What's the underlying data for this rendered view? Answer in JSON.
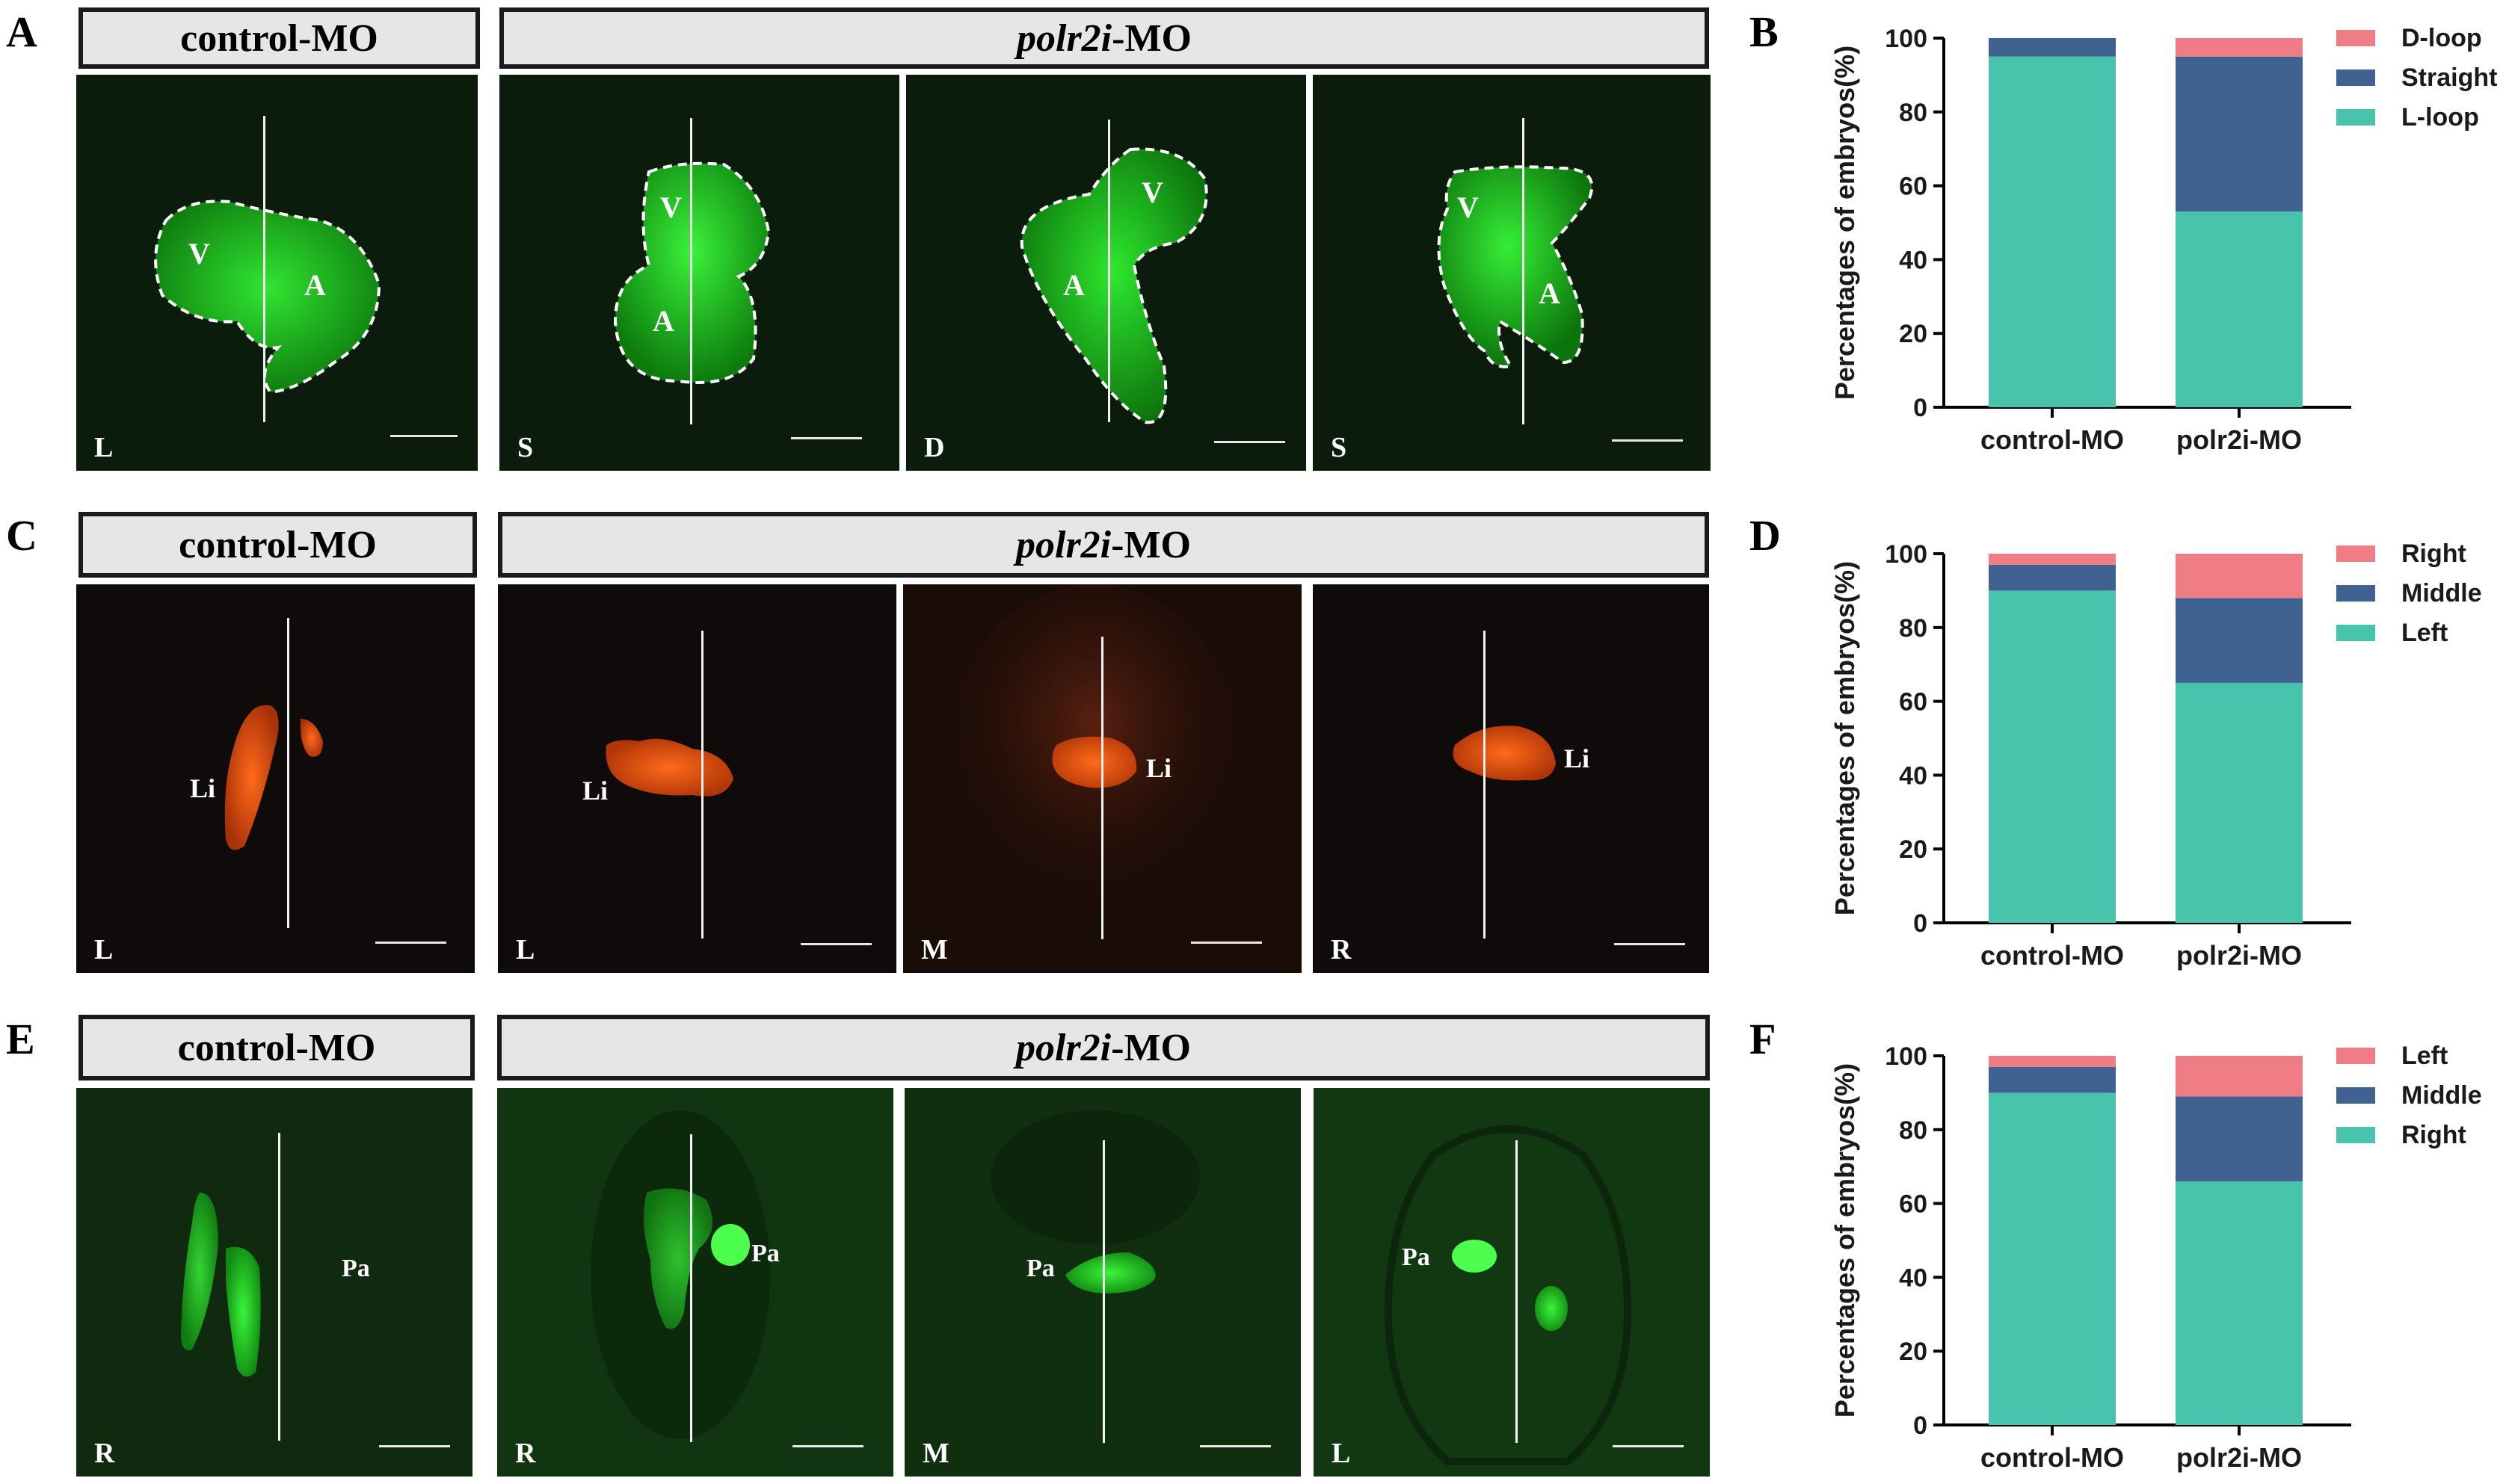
{
  "rows": [
    {
      "id": "heart",
      "panel_letter": "A",
      "chart_letter": "B",
      "header_control": "control-MO",
      "header_treat_italic": "polr2i",
      "header_treat_suffix": "-MO",
      "panels": [
        {
          "corner": "L",
          "organ_labels": [
            "V",
            "A"
          ]
        },
        {
          "corner": "S",
          "organ_labels": [
            "V",
            "A"
          ]
        },
        {
          "corner": "D",
          "organ_labels": [
            "V",
            "A"
          ]
        },
        {
          "corner": "S",
          "organ_labels": [
            "V",
            "A"
          ]
        }
      ]
    },
    {
      "id": "liver",
      "panel_letter": "C",
      "chart_letter": "D",
      "header_control": "control-MO",
      "header_treat_italic": "polr2i",
      "header_treat_suffix": "-MO",
      "panels": [
        {
          "corner": "L",
          "organ_labels": [
            "Li"
          ]
        },
        {
          "corner": "L",
          "organ_labels": [
            "Li"
          ]
        },
        {
          "corner": "M",
          "organ_labels": [
            "Li"
          ]
        },
        {
          "corner": "R",
          "organ_labels": [
            "Li"
          ]
        }
      ]
    },
    {
      "id": "pancreas",
      "panel_letter": "E",
      "chart_letter": "F",
      "header_control": "control-MO",
      "header_treat_italic": "polr2i",
      "header_treat_suffix": "-MO",
      "panels": [
        {
          "corner": "R",
          "organ_labels": [
            "Pa"
          ]
        },
        {
          "corner": "R",
          "organ_labels": [
            "Pa"
          ]
        },
        {
          "corner": "M",
          "organ_labels": [
            "Pa"
          ]
        },
        {
          "corner": "L",
          "organ_labels": [
            "Pa"
          ]
        }
      ]
    }
  ],
  "colors": {
    "series_top": "#f07c86",
    "series_mid": "#3f6290",
    "series_bottom": "#48c4ad",
    "heart_fluor": "#2ee82e",
    "liver_fluor": "#ff5a10",
    "pancreas_fluor": "#35f035"
  },
  "chart_data": [
    {
      "type": "bar",
      "stacked": true,
      "categories": [
        "control-MO",
        "polr2i-MO"
      ],
      "ylabel": "Percentages of embryos(%)",
      "ylim": [
        0,
        100
      ],
      "yticks": [
        "0",
        "20",
        "40",
        "60",
        "80",
        "100"
      ],
      "legend_position": "top-right",
      "series": [
        {
          "name": "L-loop",
          "values": [
            95,
            53
          ]
        },
        {
          "name": "Straight",
          "values": [
            5,
            42
          ]
        },
        {
          "name": "D-loop",
          "values": [
            0,
            5
          ]
        }
      ]
    },
    {
      "type": "bar",
      "stacked": true,
      "categories": [
        "control-MO",
        "polr2i-MO"
      ],
      "ylabel": "Percentages of embryos(%)",
      "ylim": [
        0,
        100
      ],
      "yticks": [
        "0",
        "20",
        "40",
        "60",
        "80",
        "100"
      ],
      "legend_position": "top-right",
      "series": [
        {
          "name": "Left",
          "values": [
            90,
            65
          ]
        },
        {
          "name": "Middle",
          "values": [
            7,
            23
          ]
        },
        {
          "name": "Right",
          "values": [
            3,
            12
          ]
        }
      ]
    },
    {
      "type": "bar",
      "stacked": true,
      "categories": [
        "control-MO",
        "polr2i-MO"
      ],
      "ylabel": "Percentages of embryos(%)",
      "ylim": [
        0,
        100
      ],
      "yticks": [
        "0",
        "20",
        "40",
        "60",
        "80",
        "100"
      ],
      "legend_position": "top-right",
      "series": [
        {
          "name": "Right",
          "values": [
            90,
            66
          ]
        },
        {
          "name": "Middle",
          "values": [
            7,
            23
          ]
        },
        {
          "name": "Left",
          "values": [
            3,
            11
          ]
        }
      ]
    }
  ]
}
